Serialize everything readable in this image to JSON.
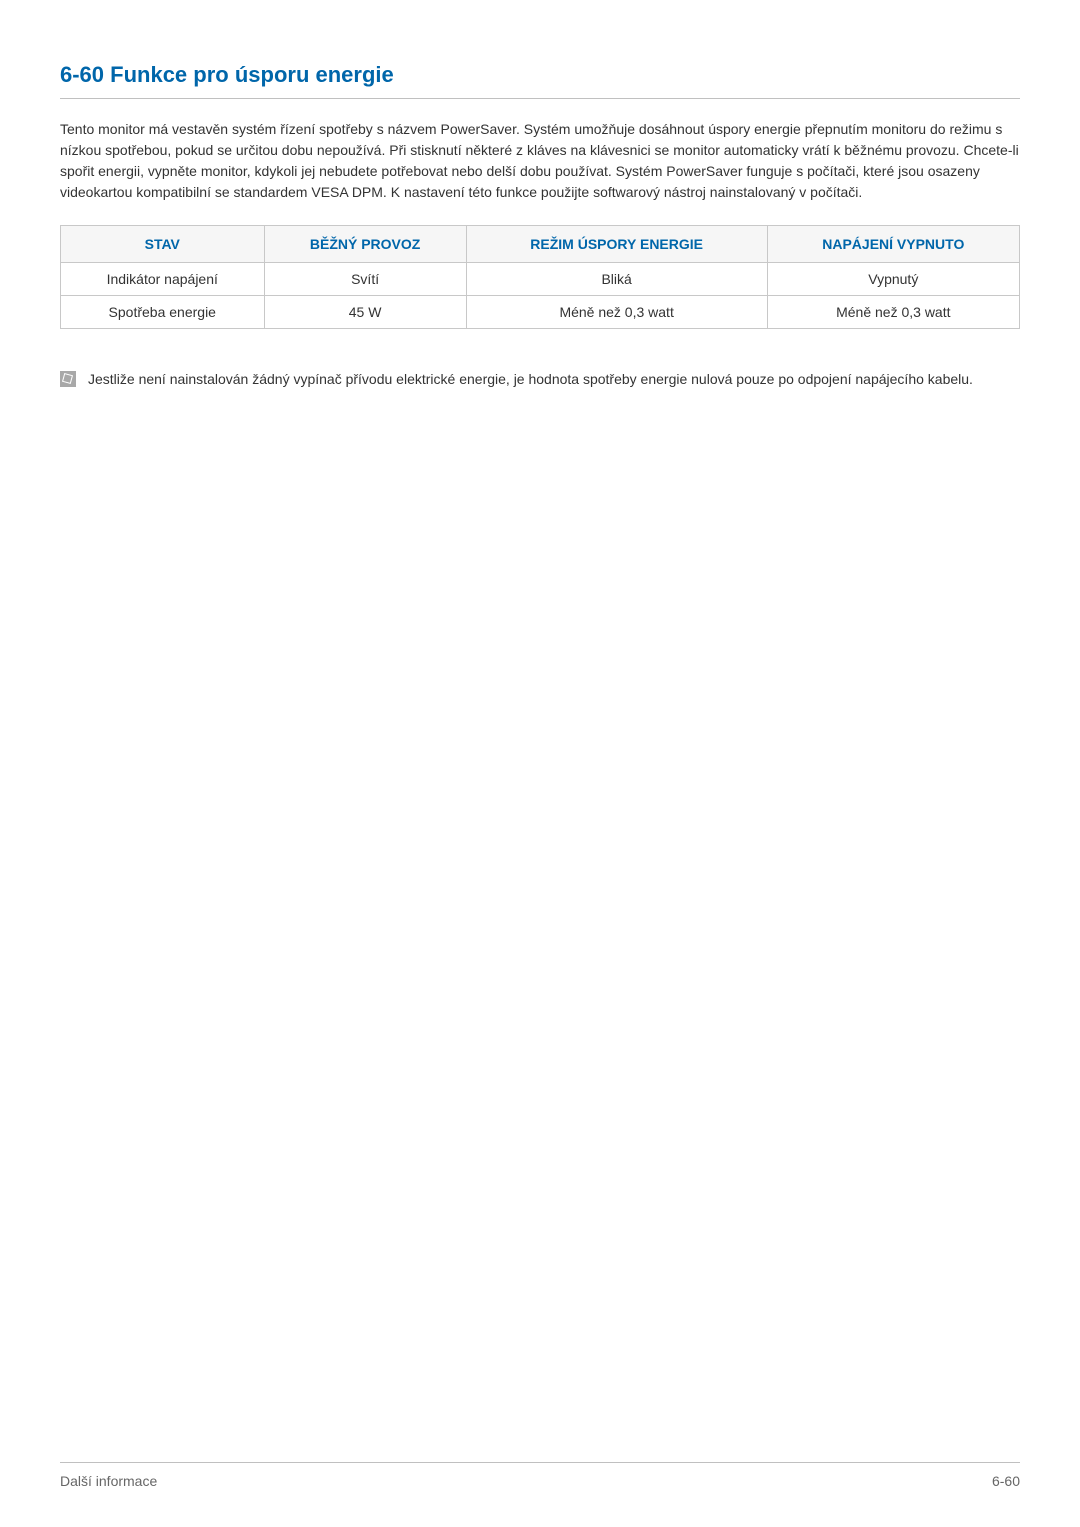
{
  "heading": "6-60   Funkce pro úsporu energie",
  "intro": "Tento monitor má vestavěn systém řízení spotřeby s názvem PowerSaver. Systém umožňuje dosáhnout úspory energie přepnutím monitoru do režimu s nízkou spotřebou, pokud se určitou dobu nepoužívá. Při stisknutí některé z kláves na klávesnici se monitor automaticky vrátí k běžnému provozu. Chcete-li spořit energii, vypněte monitor, kdykoli jej nebudete potřebovat nebo delší dobu používat. Systém PowerSaver funguje s počítači, které jsou osazeny videokartou kompatibilní se standardem VESA DPM. K nastavení této funkce použijte softwarový nástroj nainstalovaný v počítači.",
  "table": {
    "headers": [
      "STAV",
      "BĚŽNÝ PROVOZ",
      "REŽIM ÚSPORY ENERGIE",
      "NAPÁJENÍ VYPNUTO"
    ],
    "rows": [
      [
        "Indikátor napájení",
        "Svítí",
        "Bliká",
        "Vypnutý"
      ],
      [
        "Spotřeba energie",
        "45 W",
        "Méně než 0,3 watt",
        "Méně než 0,3 watt"
      ]
    ]
  },
  "note": "Jestliže není nainstalován žádný vypínač přívodu elektrické energie, je hodnota spotřeby energie nulová pouze po odpojení napájecího kabelu.",
  "footer_left": "Další informace",
  "footer_right": "6-60",
  "colors": {
    "heading_color": "#0066aa",
    "header_bg": "#f6f6f6",
    "header_text": "#0066aa",
    "border_color": "#c8c8c8",
    "body_text": "#333333",
    "footer_text": "#666666",
    "note_icon_bg": "#a8a8a8",
    "divider_color": "#c0c0c0"
  }
}
